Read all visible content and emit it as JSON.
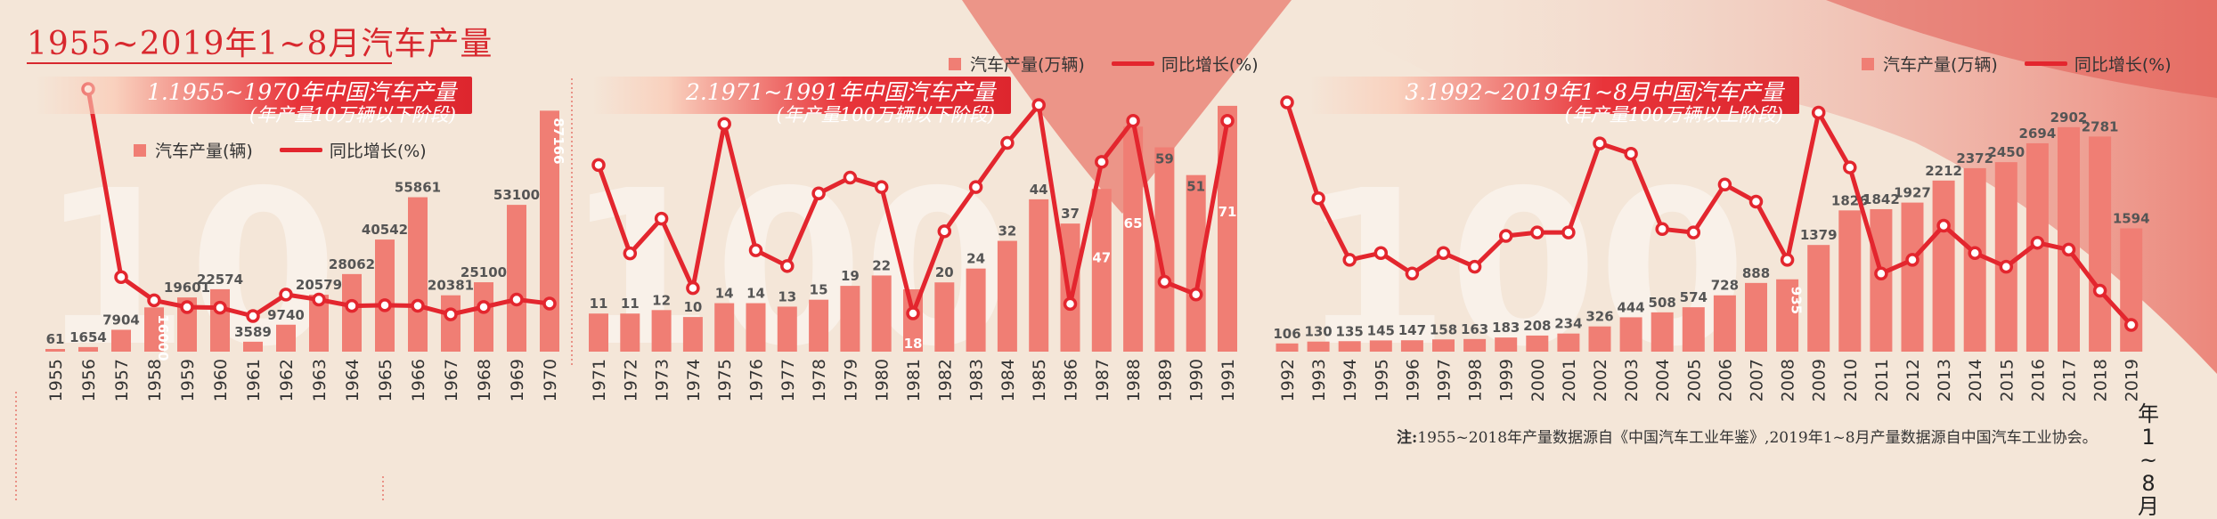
{
  "page": {
    "title": "1955~2019年1~8月汽车产量",
    "note_label": "注:",
    "note_text": "1955~2018年产量数据源自《中国汽车工业年鉴》,2019年1~8月产量数据源自中国汽车工业协会。",
    "colors": {
      "bar": "#f07e74",
      "line": "#e3262e",
      "accent": "#d8282e",
      "background": "#f4e6d8"
    }
  },
  "panels": [
    {
      "title": "1.1955~1970年中国汽车产量",
      "subtitle": "(年产量10万辆以下阶段)",
      "legend_bar": "汽车产量(辆)",
      "legend_line": "同比增长(%)",
      "watermark": "10"
    },
    {
      "title": "2.1971~1991年中国汽车产量",
      "subtitle": "(年产量100万辆以下阶段)",
      "legend_bar": "汽车产量(万辆)",
      "legend_line": "同比增长(%)",
      "watermark": "100"
    },
    {
      "title": "3.1992~2019年1~8月中国汽车产量",
      "subtitle": "(年产量100万辆以上阶段)",
      "legend_bar": "汽车产量(万辆)",
      "legend_line": "同比增长(%)",
      "watermark": "100"
    }
  ],
  "last_label_vertical": "年1~8月",
  "chart_data": [
    {
      "type": "bar+line",
      "title": "1.1955~1970年中国汽车产量",
      "categories": [
        "1955",
        "1956",
        "1957",
        "1958",
        "1959",
        "1960",
        "1961",
        "1962",
        "1963",
        "1964",
        "1965",
        "1966",
        "1967",
        "1968",
        "1969",
        "1970"
      ],
      "series": [
        {
          "name": "汽车产量(辆)",
          "type": "bar",
          "values": [
            61,
            1654,
            7904,
            16000,
            19601,
            22574,
            3589,
            9740,
            20579,
            28062,
            40542,
            55861,
            20381,
            25100,
            53100,
            87166
          ],
          "labels": [
            "61",
            "1654",
            "7904",
            "16000",
            "19601",
            "22574",
            "3589",
            "9740",
            "20579",
            "28062",
            "40542",
            "55861",
            "20381",
            "25100",
            "53100",
            "87166"
          ]
        },
        {
          "name": "同比增长(%)",
          "type": "line",
          "values": [
            null,
            2611,
            378,
            102,
            22,
            15,
            -84,
            171,
            111,
            36,
            44,
            38,
            -64,
            23,
            112,
            64
          ]
        }
      ],
      "ylim": [
        0,
        95000
      ]
    },
    {
      "type": "bar+line",
      "title": "2.1971~1991年中国汽车产量",
      "categories": [
        "1971",
        "1972",
        "1973",
        "1974",
        "1975",
        "1976",
        "1977",
        "1978",
        "1979",
        "1980",
        "1981",
        "1982",
        "1983",
        "1984",
        "1985",
        "1986",
        "1987",
        "1988",
        "1989",
        "1990",
        "1991"
      ],
      "series": [
        {
          "name": "汽车产量(万辆)",
          "type": "bar",
          "values": [
            11,
            11,
            12,
            10,
            14,
            14,
            13,
            15,
            19,
            22,
            18,
            20,
            24,
            32,
            44,
            37,
            47,
            65,
            59,
            51,
            71
          ],
          "labels": [
            "11",
            "11",
            "12",
            "10",
            "14",
            "14",
            "13",
            "15",
            "19",
            "22",
            "18",
            "20",
            "24",
            "32",
            "44",
            "37",
            "47",
            "65",
            "59",
            "51",
            "71"
          ]
        },
        {
          "name": "同比增长(%)",
          "type": "line",
          "values": [
            26,
            -2,
            9,
            -13,
            39,
            -1,
            -6,
            17,
            22,
            19,
            -21,
            5,
            19,
            33,
            45,
            -18,
            27,
            40,
            -11,
            -15,
            40
          ]
        }
      ],
      "ylim": [
        0,
        72
      ]
    },
    {
      "type": "bar+line",
      "title": "3.1992~2019年1~8月中国汽车产量",
      "categories": [
        "1992",
        "1993",
        "1994",
        "1995",
        "1996",
        "1997",
        "1998",
        "1999",
        "2000",
        "2001",
        "2002",
        "2003",
        "2004",
        "2005",
        "2006",
        "2007",
        "2008",
        "2009",
        "2010",
        "2011",
        "2012",
        "2013",
        "2014",
        "2015",
        "2016",
        "2017",
        "2018",
        "2019年1~8月"
      ],
      "series": [
        {
          "name": "汽车产量(万辆)",
          "type": "bar",
          "values": [
            106,
            130,
            135,
            145,
            147,
            158,
            163,
            183,
            208,
            234,
            326,
            444,
            508,
            574,
            728,
            888,
            935,
            1379,
            1826,
            1842,
            1927,
            2212,
            2372,
            2450,
            2694,
            2902,
            2781,
            1594
          ],
          "labels": [
            "106",
            "130",
            "135",
            "145",
            "147",
            "158",
            "163",
            "183",
            "208",
            "234",
            "326",
            "444",
            "508",
            "574",
            "728",
            "888",
            "935",
            "1379",
            "1826",
            "1842",
            "1927",
            "2212",
            "2372",
            "2450",
            "2694",
            "2902",
            "2781",
            "1594"
          ]
        },
        {
          "name": "同比增长(%)",
          "type": "line",
          "values": [
            51,
            23,
            5,
            7,
            1,
            7,
            3,
            12,
            13,
            13,
            39,
            36,
            14,
            13,
            27,
            22,
            5,
            48,
            32,
            1,
            5,
            15,
            7,
            3,
            10,
            8,
            -4,
            -14
          ]
        }
      ],
      "ylim": [
        0,
        3050
      ]
    }
  ]
}
